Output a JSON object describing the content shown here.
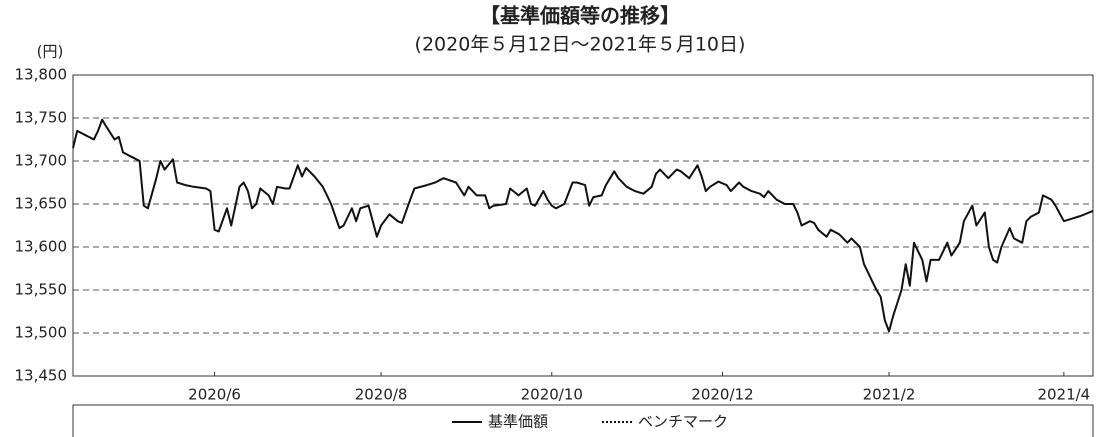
{
  "chart_data": {
    "type": "line",
    "title": "【基準価額等の推移】",
    "subtitle": "(2020年５月12日～2021年５月10日)",
    "y_unit": "(円)",
    "ylim": [
      13450,
      13800
    ],
    "yticks": [
      {
        "value": 13450,
        "label": "13,450"
      },
      {
        "value": 13500,
        "label": "13,500"
      },
      {
        "value": 13550,
        "label": "13,550"
      },
      {
        "value": 13600,
        "label": "13,600"
      },
      {
        "value": 13650,
        "label": "13,650"
      },
      {
        "value": 13700,
        "label": "13,700"
      },
      {
        "value": 13750,
        "label": "13,750"
      },
      {
        "value": 13800,
        "label": "13,800"
      }
    ],
    "grid": true,
    "xlim": [
      0,
      245
    ],
    "xticks": [
      {
        "value": 34,
        "label": "2020/6"
      },
      {
        "value": 74,
        "label": "2020/8"
      },
      {
        "value": 115,
        "label": "2020/10"
      },
      {
        "value": 156,
        "label": "2020/12"
      },
      {
        "value": 196,
        "label": "2021/2"
      },
      {
        "value": 238,
        "label": "2021/4"
      }
    ],
    "series": [
      {
        "name": "基準価額",
        "color": "#111111",
        "x": [
          0,
          1,
          3,
          5,
          6,
          7,
          8,
          10,
          11,
          12,
          14,
          16,
          17,
          18,
          20,
          21,
          22,
          24,
          25,
          27,
          29,
          32,
          33,
          34,
          35,
          37,
          38,
          40,
          41,
          42,
          43,
          44,
          45,
          47,
          48,
          49,
          51,
          52,
          54,
          55,
          56,
          58,
          60,
          61,
          62,
          64,
          65,
          67,
          68,
          69,
          71,
          73,
          74,
          76,
          78,
          79,
          81,
          82,
          85,
          87,
          89,
          92,
          94,
          95,
          97,
          99,
          100,
          101,
          104,
          105,
          107,
          109,
          110,
          111,
          113,
          114,
          115,
          116,
          118,
          120,
          121,
          123,
          124,
          125,
          127,
          128,
          130,
          131,
          133,
          135,
          137,
          139,
          140,
          141,
          143,
          145,
          146,
          148,
          150,
          151,
          152,
          153,
          155,
          157,
          158,
          160,
          161,
          163,
          165,
          166,
          167,
          169,
          171,
          173,
          174,
          175,
          177,
          178,
          179,
          181,
          182,
          184,
          186,
          187,
          189,
          190,
          191,
          192,
          193,
          194,
          195,
          196,
          197,
          199,
          200,
          201,
          202,
          203,
          204,
          205,
          206,
          208,
          210,
          211,
          213,
          214,
          216,
          217,
          219,
          220,
          221,
          222,
          223,
          225,
          226,
          228,
          229,
          230,
          232,
          233,
          235,
          236,
          238,
          240,
          242,
          245
        ],
        "values": [
          13715,
          13735,
          13730,
          13725,
          13735,
          13748,
          13740,
          13725,
          13728,
          13710,
          13705,
          13700,
          13648,
          13645,
          13680,
          13700,
          13690,
          13702,
          13675,
          13672,
          13670,
          13668,
          13665,
          13620,
          13618,
          13645,
          13625,
          13670,
          13675,
          13665,
          13645,
          13650,
          13668,
          13660,
          13650,
          13670,
          13668,
          13668,
          13695,
          13682,
          13692,
          13682,
          13670,
          13660,
          13650,
          13622,
          13625,
          13645,
          13630,
          13645,
          13648,
          13612,
          13625,
          13638,
          13630,
          13628,
          13655,
          13668,
          13672,
          13675,
          13680,
          13675,
          13660,
          13670,
          13660,
          13660,
          13645,
          13648,
          13650,
          13668,
          13660,
          13668,
          13650,
          13648,
          13665,
          13655,
          13648,
          13645,
          13650,
          13675,
          13675,
          13672,
          13648,
          13658,
          13660,
          13672,
          13688,
          13680,
          13670,
          13665,
          13662,
          13670,
          13685,
          13690,
          13680,
          13690,
          13688,
          13680,
          13695,
          13682,
          13665,
          13670,
          13676,
          13672,
          13665,
          13675,
          13670,
          13665,
          13662,
          13658,
          13665,
          13655,
          13650,
          13650,
          13640,
          13625,
          13630,
          13628,
          13620,
          13612,
          13620,
          13615,
          13605,
          13610,
          13600,
          13580,
          13570,
          13560,
          13550,
          13542,
          13515,
          13502,
          13520,
          13550,
          13580,
          13555,
          13605,
          13595,
          13585,
          13560,
          13585,
          13585,
          13605,
          13590,
          13605,
          13630,
          13648,
          13625,
          13640,
          13600,
          13585,
          13582,
          13600,
          13622,
          13610,
          13605,
          13630,
          13635,
          13640,
          13660,
          13655,
          13648,
          13630,
          13633,
          13636,
          13642
        ]
      }
    ],
    "legend": [
      {
        "label": "基準価額",
        "style": "solid"
      },
      {
        "label": "ベンチマーク",
        "style": "dotted"
      }
    ]
  }
}
